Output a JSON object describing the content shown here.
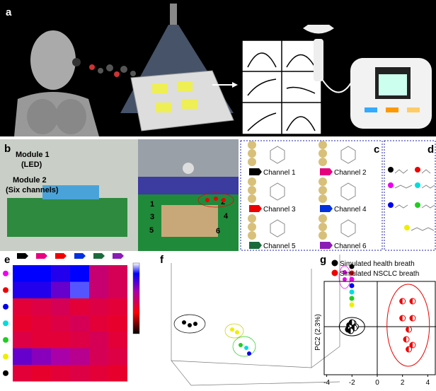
{
  "panel_labels": [
    "a",
    "b",
    "c",
    "d",
    "e",
    "f",
    "g"
  ],
  "panel_b": {
    "module1": "Module 1",
    "module1_sub": "(LED)",
    "module2": "Module 2",
    "module2_sub": "(Six channels)",
    "channel_numbers": [
      "1",
      "2",
      "3",
      "4",
      "5",
      "6"
    ]
  },
  "panel_c": {
    "channels": [
      "Channel 1",
      "Channel 2",
      "Channel 3",
      "Channel 4",
      "Channel 5",
      "Channel 6"
    ]
  },
  "panel_e": {
    "clim": [
      0,
      1
    ],
    "values": [
      [
        0.85,
        0.85,
        0.8,
        0.85,
        0.5,
        0.45
      ],
      [
        0.8,
        0.8,
        0.7,
        0.9,
        0.5,
        0.45
      ],
      [
        0.4,
        0.42,
        0.45,
        0.4,
        0.42,
        0.4
      ],
      [
        0.38,
        0.4,
        0.42,
        0.45,
        0.4,
        0.38
      ],
      [
        0.42,
        0.4,
        0.4,
        0.42,
        0.45,
        0.4
      ],
      [
        0.7,
        0.65,
        0.6,
        0.55,
        0.45,
        0.42
      ],
      [
        0.4,
        0.38,
        0.4,
        0.42,
        0.4,
        0.38
      ]
    ]
  },
  "panel_g": {
    "legend": [
      "Simulated health breath",
      "Simulated NSCLC breath"
    ],
    "ylabel": "PC2 (2.3%)",
    "xlim": [
      -4.2,
      4.65
    ],
    "ylim": [
      -3.4,
      3.2
    ],
    "xticks": [
      -4,
      -2,
      0,
      2,
      4
    ],
    "health": {
      "x": [
        -2.2,
        -1.9,
        -1.7,
        -2.3,
        -1.8,
        -2.0,
        -2.1
      ],
      "y": [
        0.1,
        0.25,
        0.0,
        -0.2,
        -0.1,
        0.3,
        -0.3
      ]
    },
    "nsclc": {
      "x": [
        2.0,
        2.8,
        2.0,
        2.8,
        2.5,
        2.3,
        2.8,
        2.5
      ],
      "y": [
        1.8,
        1.8,
        0.6,
        0.6,
        -0.2,
        -0.9,
        -1.3,
        -1.6
      ]
    }
  }
}
